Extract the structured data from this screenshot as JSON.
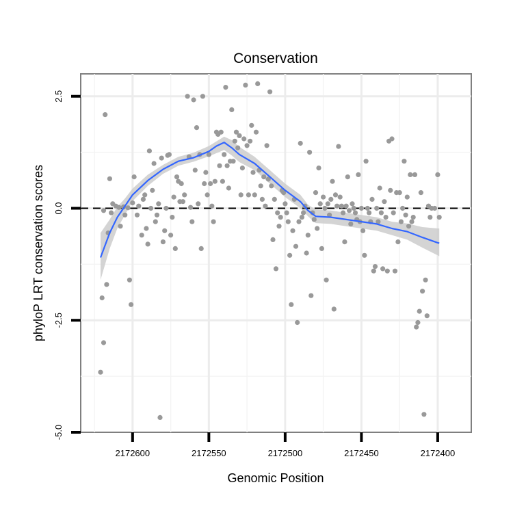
{
  "chart_data": {
    "type": "scatter",
    "title": "Conservation",
    "xlabel": "Genomic Position",
    "ylabel": "phyloP LRT conservation scores",
    "x_reversed": true,
    "xlim": [
      2172634,
      2172378
    ],
    "ylim": [
      -5.0,
      3.0
    ],
    "x_ticks": [
      2172600,
      2172550,
      2172500,
      2172450,
      2172400
    ],
    "x_tick_labels": [
      "2172600",
      "2172550",
      "2172500",
      "2172450",
      "2172400"
    ],
    "y_ticks": [
      -5.0,
      -2.5,
      0.0,
      2.5
    ],
    "y_tick_labels": [
      "-5.0",
      "-2.5",
      "0.0",
      "2.5"
    ],
    "reference_line": {
      "y": 0.0,
      "style": "dashed"
    },
    "grid": true,
    "point_color": "#999999",
    "smooth_color": "#3366ff",
    "ribbon_color": "#cccccc",
    "points": [
      [
        2172621,
        -3.66
      ],
      [
        2172620,
        -2.0
      ],
      [
        2172619,
        -3.0
      ],
      [
        2172619,
        -0.05
      ],
      [
        2172618,
        2.09
      ],
      [
        2172617,
        -1.7
      ],
      [
        2172616,
        -0.55
      ],
      [
        2172615,
        0.66
      ],
      [
        2172614,
        -0.1
      ],
      [
        2172613,
        0.1
      ],
      [
        2172611,
        0.05
      ],
      [
        2172609,
        0.02
      ],
      [
        2172608,
        -0.4
      ],
      [
        2172606,
        0.03
      ],
      [
        2172605,
        -0.15
      ],
      [
        2172603,
        0.01
      ],
      [
        2172602,
        -1.6
      ],
      [
        2172601,
        -2.15
      ],
      [
        2172600,
        0.12
      ],
      [
        2172599,
        0.7
      ],
      [
        2172597,
        -0.15
      ],
      [
        2172596,
        0.05
      ],
      [
        2172594,
        -0.6
      ],
      [
        2172593,
        0.2
      ],
      [
        2172592,
        0.3
      ],
      [
        2172591,
        -0.45
      ],
      [
        2172590,
        -0.8
      ],
      [
        2172589,
        1.28
      ],
      [
        2172588,
        0.0
      ],
      [
        2172587,
        0.4
      ],
      [
        2172586,
        1.0
      ],
      [
        2172585,
        -0.3
      ],
      [
        2172584,
        -0.15
      ],
      [
        2172583,
        0.1
      ],
      [
        2172582,
        -4.67
      ],
      [
        2172581,
        1.12
      ],
      [
        2172580,
        -0.75
      ],
      [
        2172579,
        -0.5
      ],
      [
        2172578,
        0.0
      ],
      [
        2172577,
        1.18
      ],
      [
        2172576,
        1.2
      ],
      [
        2172575,
        -0.6
      ],
      [
        2172574,
        -0.2
      ],
      [
        2172573,
        0.25
      ],
      [
        2172572,
        -0.9
      ],
      [
        2172571,
        0.7
      ],
      [
        2172570,
        0.6
      ],
      [
        2172569,
        0.15
      ],
      [
        2172568,
        0.55
      ],
      [
        2172567,
        0.15
      ],
      [
        2172566,
        0.3
      ],
      [
        2172564,
        2.5
      ],
      [
        2172563,
        1.15
      ],
      [
        2172562,
        0.02
      ],
      [
        2172561,
        -0.3
      ],
      [
        2172560,
        2.42
      ],
      [
        2172559,
        0.85
      ],
      [
        2172558,
        1.8
      ],
      [
        2172557,
        0.1
      ],
      [
        2172556,
        1.2
      ],
      [
        2172555,
        -0.9
      ],
      [
        2172554,
        2.5
      ],
      [
        2172553,
        0.55
      ],
      [
        2172552,
        0.8
      ],
      [
        2172551,
        0.3
      ],
      [
        2172550,
        1.2
      ],
      [
        2172549,
        0.55
      ],
      [
        2172548,
        0.05
      ],
      [
        2172547,
        -0.3
      ],
      [
        2172546,
        0.6
      ],
      [
        2172545,
        1.7
      ],
      [
        2172544,
        1.65
      ],
      [
        2172543,
        0.95
      ],
      [
        2172542,
        1.7
      ],
      [
        2172541,
        0.6
      ],
      [
        2172540,
        1.2
      ],
      [
        2172539,
        2.7
      ],
      [
        2172538,
        0.95
      ],
      [
        2172537,
        0.45
      ],
      [
        2172536,
        1.05
      ],
      [
        2172535,
        2.2
      ],
      [
        2172534,
        1.05
      ],
      [
        2172533,
        1.5
      ],
      [
        2172532,
        1.7
      ],
      [
        2172531,
        1.35
      ],
      [
        2172530,
        1.62
      ],
      [
        2172529,
        0.3
      ],
      [
        2172528,
        0.9
      ],
      [
        2172527,
        1.55
      ],
      [
        2172526,
        2.75
      ],
      [
        2172525,
        1.4
      ],
      [
        2172524,
        0.3
      ],
      [
        2172523,
        1.5
      ],
      [
        2172522,
        1.85
      ],
      [
        2172521,
        0.8
      ],
      [
        2172520,
        0.3
      ],
      [
        2172519,
        1.7
      ],
      [
        2172518,
        2.78
      ],
      [
        2172517,
        0.85
      ],
      [
        2172516,
        0.5
      ],
      [
        2172515,
        0.2
      ],
      [
        2172514,
        0.7
      ],
      [
        2172513,
        0.05
      ],
      [
        2172512,
        1.4
      ],
      [
        2172511,
        0.65
      ],
      [
        2172510,
        2.6
      ],
      [
        2172509,
        0.5
      ],
      [
        2172508,
        -0.7
      ],
      [
        2172507,
        0.2
      ],
      [
        2172506,
        -1.35
      ],
      [
        2172505,
        -0.1
      ],
      [
        2172504,
        -0.4
      ],
      [
        2172503,
        -0.2
      ],
      [
        2172502,
        0.4
      ],
      [
        2172501,
        0.35
      ],
      [
        2172500,
        0.1
      ],
      [
        2172499,
        -0.1
      ],
      [
        2172498,
        -0.3
      ],
      [
        2172497,
        -1.05
      ],
      [
        2172496,
        -2.15
      ],
      [
        2172495,
        -0.5
      ],
      [
        2172494,
        0.2
      ],
      [
        2172493,
        -0.85
      ],
      [
        2172492,
        -2.55
      ],
      [
        2172491,
        -0.3
      ],
      [
        2172490,
        1.45
      ],
      [
        2172489,
        -0.2
      ],
      [
        2172488,
        -0.1
      ],
      [
        2172487,
        0.05
      ],
      [
        2172486,
        -1.0
      ],
      [
        2172485,
        -0.6
      ],
      [
        2172484,
        1.25
      ],
      [
        2172483,
        -1.95
      ],
      [
        2172482,
        -0.1
      ],
      [
        2172481,
        -0.25
      ],
      [
        2172480,
        0.35
      ],
      [
        2172479,
        -0.45
      ],
      [
        2172478,
        0.9
      ],
      [
        2172477,
        0.1
      ],
      [
        2172476,
        -0.9
      ],
      [
        2172475,
        0.25
      ],
      [
        2172474,
        0.0
      ],
      [
        2172473,
        -1.6
      ],
      [
        2172472,
        0.1
      ],
      [
        2172471,
        -0.15
      ],
      [
        2172470,
        0.2
      ],
      [
        2172469,
        0.6
      ],
      [
        2172468,
        -2.25
      ],
      [
        2172467,
        0.3
      ],
      [
        2172466,
        0.05
      ],
      [
        2172465,
        1.38
      ],
      [
        2172464,
        0.25
      ],
      [
        2172463,
        0.05
      ],
      [
        2172462,
        -0.1
      ],
      [
        2172461,
        -0.75
      ],
      [
        2172460,
        0.05
      ],
      [
        2172459,
        0.7
      ],
      [
        2172458,
        -0.05
      ],
      [
        2172457,
        -0.35
      ],
      [
        2172456,
        0.1
      ],
      [
        2172455,
        0.0
      ],
      [
        2172454,
        -0.1
      ],
      [
        2172453,
        -0.25
      ],
      [
        2172452,
        0.75
      ],
      [
        2172451,
        -0.3
      ],
      [
        2172450,
        0.0
      ],
      [
        2172449,
        -0.5
      ],
      [
        2172448,
        -1.05
      ],
      [
        2172447,
        1.05
      ],
      [
        2172446,
        0.0
      ],
      [
        2172445,
        -0.1
      ],
      [
        2172444,
        -0.3
      ],
      [
        2172443,
        0.2
      ],
      [
        2172442,
        -1.4
      ],
      [
        2172441,
        -1.3
      ],
      [
        2172440,
        0.0
      ],
      [
        2172439,
        -0.3
      ],
      [
        2172438,
        0.45
      ],
      [
        2172437,
        -0.1
      ],
      [
        2172436,
        -1.35
      ],
      [
        2172435,
        0.15
      ],
      [
        2172434,
        -0.2
      ],
      [
        2172433,
        -1.4
      ],
      [
        2172432,
        1.5
      ],
      [
        2172431,
        0.4
      ],
      [
        2172430,
        1.55
      ],
      [
        2172429,
        -0.1
      ],
      [
        2172428,
        -1.4
      ],
      [
        2172427,
        0.35
      ],
      [
        2172426,
        -0.75
      ],
      [
        2172425,
        0.35
      ],
      [
        2172424,
        -0.3
      ],
      [
        2172423,
        0.0
      ],
      [
        2172422,
        1.05
      ],
      [
        2172421,
        -0.15
      ],
      [
        2172420,
        0.25
      ],
      [
        2172419,
        -0.4
      ],
      [
        2172418,
        0.75
      ],
      [
        2172417,
        -0.3
      ],
      [
        2172416,
        -0.2
      ],
      [
        2172415,
        0.75
      ],
      [
        2172414,
        -2.65
      ],
      [
        2172413,
        -2.55
      ],
      [
        2172412,
        -2.3
      ],
      [
        2172411,
        0.35
      ],
      [
        2172410,
        -1.85
      ],
      [
        2172409,
        -4.6
      ],
      [
        2172408,
        -1.6
      ],
      [
        2172407,
        -2.4
      ],
      [
        2172406,
        0.05
      ],
      [
        2172405,
        -0.2
      ],
      [
        2172404,
        0.0
      ],
      [
        2172402,
        0.0
      ],
      [
        2172400,
        0.75
      ],
      [
        2172399,
        -0.2
      ]
    ],
    "smooth_line": [
      [
        2172621,
        -1.1
      ],
      [
        2172615,
        -0.55
      ],
      [
        2172610,
        -0.2
      ],
      [
        2172605,
        0.05
      ],
      [
        2172600,
        0.3
      ],
      [
        2172590,
        0.62
      ],
      [
        2172580,
        0.87
      ],
      [
        2172570,
        1.05
      ],
      [
        2172560,
        1.13
      ],
      [
        2172550,
        1.27
      ],
      [
        2172545,
        1.39
      ],
      [
        2172540,
        1.47
      ],
      [
        2172535,
        1.35
      ],
      [
        2172530,
        1.2
      ],
      [
        2172520,
        1.0
      ],
      [
        2172510,
        0.7
      ],
      [
        2172500,
        0.4
      ],
      [
        2172490,
        0.15
      ],
      [
        2172485,
        -0.05
      ],
      [
        2172480,
        -0.18
      ],
      [
        2172470,
        -0.2
      ],
      [
        2172460,
        -0.25
      ],
      [
        2172450,
        -0.3
      ],
      [
        2172440,
        -0.35
      ],
      [
        2172430,
        -0.45
      ],
      [
        2172420,
        -0.52
      ],
      [
        2172410,
        -0.65
      ],
      [
        2172400,
        -0.77
      ],
      [
        2172399,
        -0.78
      ]
    ],
    "confidence_band": [
      [
        2172621,
        -1.6,
        -0.55
      ],
      [
        2172615,
        -0.9,
        -0.25
      ],
      [
        2172610,
        -0.45,
        0.03
      ],
      [
        2172605,
        -0.15,
        0.22
      ],
      [
        2172600,
        0.16,
        0.44
      ],
      [
        2172590,
        0.5,
        0.75
      ],
      [
        2172580,
        0.77,
        0.97
      ],
      [
        2172570,
        0.95,
        1.15
      ],
      [
        2172560,
        1.04,
        1.24
      ],
      [
        2172550,
        1.16,
        1.39
      ],
      [
        2172540,
        1.3,
        1.6
      ],
      [
        2172535,
        1.18,
        1.52
      ],
      [
        2172530,
        1.03,
        1.37
      ],
      [
        2172520,
        0.85,
        1.15
      ],
      [
        2172510,
        0.55,
        0.85
      ],
      [
        2172500,
        0.25,
        0.55
      ],
      [
        2172490,
        0.0,
        0.3
      ],
      [
        2172485,
        -0.18,
        0.08
      ],
      [
        2172480,
        -0.33,
        -0.03
      ],
      [
        2172470,
        -0.35,
        -0.05
      ],
      [
        2172460,
        -0.4,
        -0.1
      ],
      [
        2172450,
        -0.45,
        -0.15
      ],
      [
        2172440,
        -0.5,
        -0.2
      ],
      [
        2172430,
        -0.6,
        -0.3
      ],
      [
        2172420,
        -0.7,
        -0.34
      ],
      [
        2172410,
        -0.88,
        -0.42
      ],
      [
        2172400,
        -1.05,
        -0.45
      ],
      [
        2172399,
        -1.07,
        -0.45
      ]
    ]
  }
}
